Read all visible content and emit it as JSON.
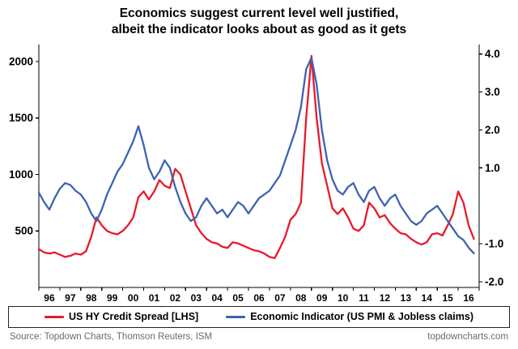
{
  "title": {
    "line1": "Economics suggest current level well justified,",
    "line2": "albeit the indicator looks about as good as it gets"
  },
  "footer": {
    "source": "Source: Topdown Charts, Thomson Reuters, ISM",
    "site": "topdowncharts.com"
  },
  "chart_data": {
    "type": "line",
    "title": "Economics suggest current level well justified, albeit the indicator looks about as good as it gets",
    "grid": false,
    "legend_position": "bottom",
    "x_axis": {
      "labels": [
        "96",
        "97",
        "98",
        "99",
        "00",
        "01",
        "02",
        "03",
        "04",
        "05",
        "06",
        "07",
        "08",
        "09",
        "10",
        "11",
        "12",
        "13",
        "14",
        "15",
        "16"
      ],
      "range": [
        1996,
        2017
      ]
    },
    "left_axis": {
      "ticks": [
        500,
        1000,
        1500,
        2000
      ],
      "range": [
        0,
        2150
      ]
    },
    "right_axis": {
      "ticks": [
        -2.0,
        -1.0,
        1.0,
        2.0,
        3.0,
        4.0
      ],
      "range": [
        -2.15,
        4.25
      ]
    },
    "x": [
      1996,
      1996.25,
      1996.5,
      1996.75,
      1997,
      1997.25,
      1997.5,
      1997.75,
      1998,
      1998.25,
      1998.5,
      1998.75,
      1999,
      1999.25,
      1999.5,
      1999.75,
      2000,
      2000.25,
      2000.5,
      2000.75,
      2001,
      2001.25,
      2001.5,
      2001.75,
      2002,
      2002.25,
      2002.5,
      2002.75,
      2003,
      2003.25,
      2003.5,
      2003.75,
      2004,
      2004.25,
      2004.5,
      2004.75,
      2005,
      2005.25,
      2005.5,
      2005.75,
      2006,
      2006.25,
      2006.5,
      2006.75,
      2007,
      2007.25,
      2007.5,
      2007.75,
      2008,
      2008.25,
      2008.5,
      2008.75,
      2009,
      2009.25,
      2009.5,
      2009.75,
      2010,
      2010.25,
      2010.5,
      2010.75,
      2011,
      2011.25,
      2011.5,
      2011.75,
      2012,
      2012.25,
      2012.5,
      2012.75,
      2013,
      2013.25,
      2013.5,
      2013.75,
      2014,
      2014.25,
      2014.5,
      2014.75,
      2015,
      2015.25,
      2015.5,
      2015.75,
      2016,
      2016.25,
      2016.5,
      2016.75
    ],
    "series": [
      {
        "name": "US HY Credit Spread [LHS]",
        "axis": "left",
        "color": "#e8192c",
        "values": [
          340,
          310,
          300,
          310,
          290,
          270,
          280,
          300,
          290,
          320,
          450,
          620,
          550,
          500,
          480,
          470,
          500,
          550,
          620,
          800,
          850,
          780,
          850,
          950,
          900,
          880,
          1050,
          1000,
          850,
          700,
          550,
          480,
          430,
          400,
          390,
          360,
          350,
          400,
          390,
          370,
          350,
          330,
          320,
          300,
          270,
          260,
          350,
          450,
          600,
          650,
          750,
          1500,
          2050,
          1500,
          1100,
          900,
          700,
          650,
          700,
          620,
          520,
          500,
          550,
          750,
          700,
          620,
          640,
          570,
          520,
          480,
          470,
          430,
          400,
          380,
          400,
          470,
          480,
          460,
          550,
          650,
          850,
          750,
          550,
          430
        ]
      },
      {
        "name": "Economic Indicator (US PMI & Jobless claims)",
        "axis": "right",
        "color": "#3f63b1",
        "values": [
          0.35,
          0.1,
          -0.1,
          0.2,
          0.45,
          0.6,
          0.55,
          0.4,
          0.3,
          0.1,
          -0.2,
          -0.4,
          -0.1,
          0.3,
          0.6,
          0.9,
          1.1,
          1.4,
          1.7,
          2.1,
          1.6,
          1.0,
          0.7,
          0.9,
          1.2,
          1.0,
          0.5,
          0.1,
          -0.2,
          -0.4,
          -0.3,
          0.0,
          0.2,
          0.0,
          -0.2,
          -0.1,
          -0.3,
          -0.1,
          0.1,
          0.0,
          -0.2,
          0.0,
          0.2,
          0.3,
          0.4,
          0.6,
          0.8,
          1.2,
          1.6,
          2.0,
          2.6,
          3.6,
          3.9,
          3.2,
          2.0,
          1.2,
          0.7,
          0.4,
          0.3,
          0.5,
          0.6,
          0.3,
          0.1,
          0.4,
          0.5,
          0.2,
          0.0,
          0.2,
          0.3,
          0.0,
          -0.2,
          -0.4,
          -0.5,
          -0.4,
          -0.2,
          -0.1,
          0.0,
          -0.2,
          -0.4,
          -0.6,
          -0.8,
          -0.9,
          -1.1,
          -1.25
        ]
      }
    ]
  }
}
